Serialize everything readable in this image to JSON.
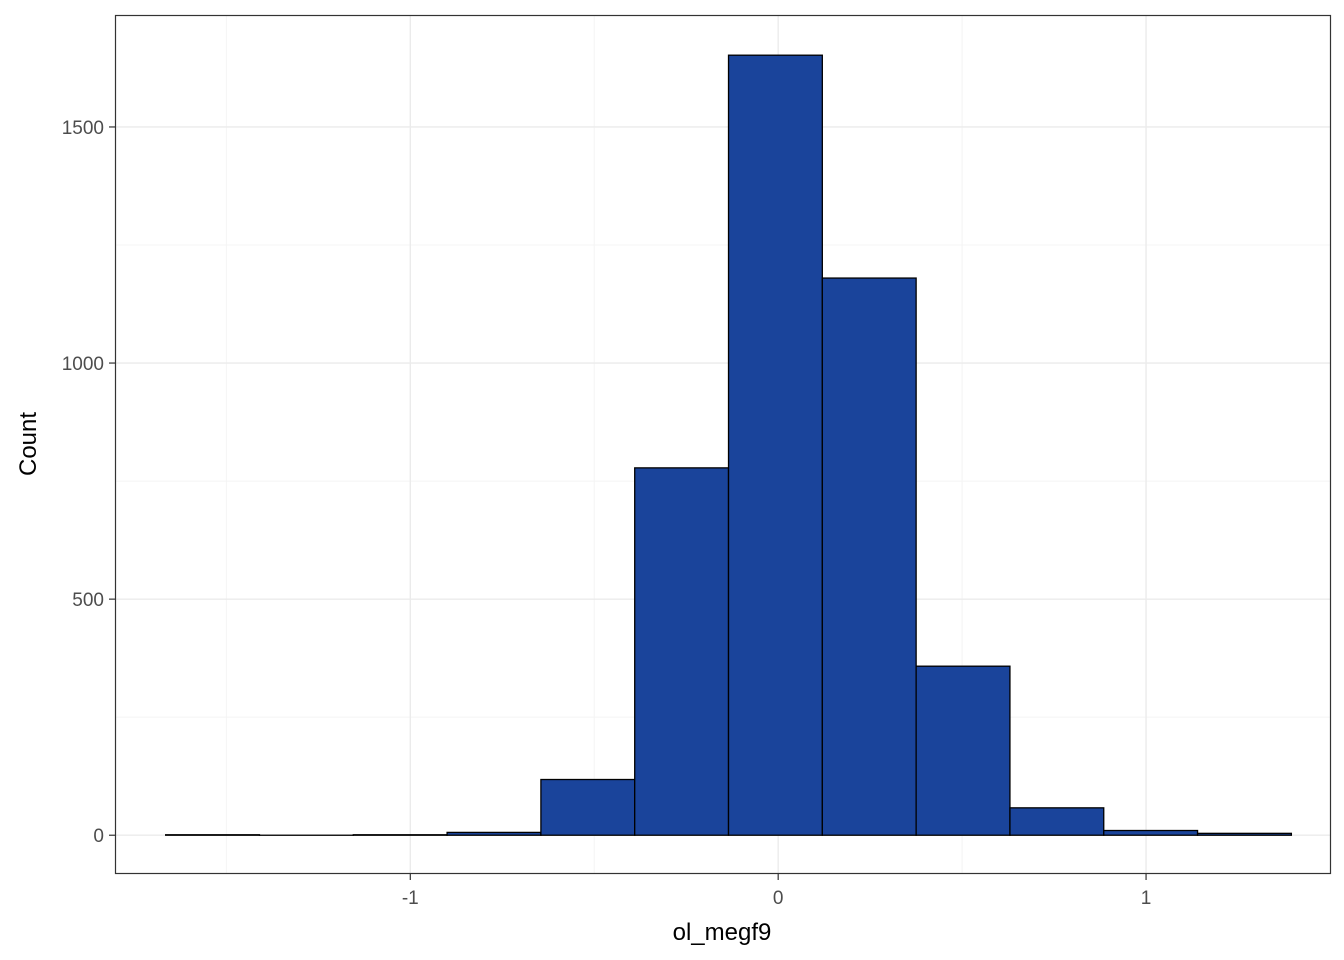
{
  "chart_data": {
    "type": "bar",
    "subtype": "histogram",
    "title": "",
    "xlabel": "ol_megf9",
    "ylabel": "Count",
    "bin_width": 0.255,
    "bins": [
      {
        "x_start": -1.665,
        "x_end": -1.41,
        "count": 1
      },
      {
        "x_start": -1.41,
        "x_end": -1.155,
        "count": 0
      },
      {
        "x_start": -1.155,
        "x_end": -0.9,
        "count": 1
      },
      {
        "x_start": -0.9,
        "x_end": -0.645,
        "count": 6
      },
      {
        "x_start": -0.645,
        "x_end": -0.39,
        "count": 118
      },
      {
        "x_start": -0.39,
        "x_end": -0.135,
        "count": 778
      },
      {
        "x_start": -0.135,
        "x_end": 0.12,
        "count": 1652
      },
      {
        "x_start": 0.12,
        "x_end": 0.375,
        "count": 1180
      },
      {
        "x_start": 0.375,
        "x_end": 0.63,
        "count": 358
      },
      {
        "x_start": 0.63,
        "x_end": 0.885,
        "count": 58
      },
      {
        "x_start": 0.885,
        "x_end": 1.14,
        "count": 10
      },
      {
        "x_start": 1.14,
        "x_end": 1.395,
        "count": 4
      }
    ],
    "xlim": [
      -1.8,
      1.5
    ],
    "ylim": [
      -80,
      1735
    ],
    "x_ticks": [
      {
        "value": -1,
        "label": "-1"
      },
      {
        "value": 0,
        "label": "0"
      },
      {
        "value": 1,
        "label": "1"
      }
    ],
    "y_ticks": [
      {
        "value": 0,
        "label": "0"
      },
      {
        "value": 500,
        "label": "500"
      },
      {
        "value": 1000,
        "label": "1000"
      },
      {
        "value": 1500,
        "label": "1500"
      }
    ],
    "x_minor_grid": [
      -1.5,
      -0.5,
      0.5
    ],
    "y_minor_grid": [
      250,
      750,
      1250
    ],
    "grid": true,
    "legend": "none",
    "colors": {
      "fill": "#1A449B",
      "bar_outline": "#000000",
      "grid_major": "#EBEBEB",
      "grid_minor": "#F4F4F4",
      "panel_border": "#333333",
      "tick_text": "#4D4D4D",
      "title_text": "#000000"
    }
  }
}
